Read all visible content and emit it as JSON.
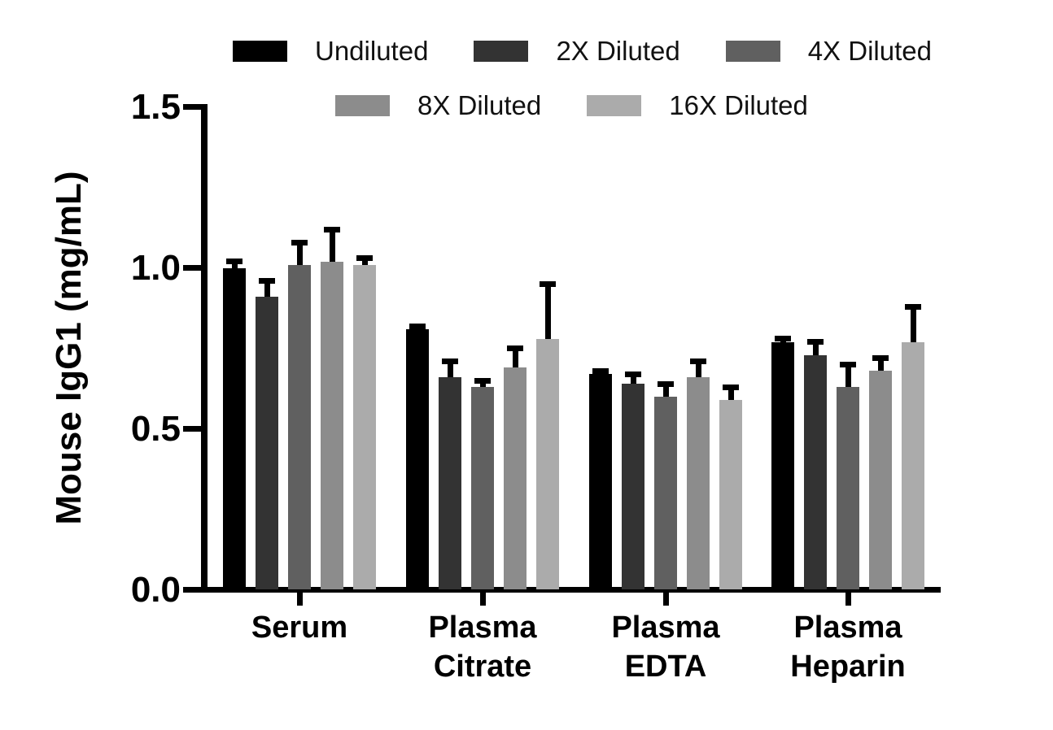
{
  "chart_data": {
    "type": "bar",
    "title": "",
    "xlabel": "",
    "ylabel": "Mouse IgG1 (mg/mL)",
    "ylim": [
      0.0,
      1.5
    ],
    "yticks": [
      0.0,
      0.5,
      1.0,
      1.5
    ],
    "ytick_labels": [
      "0.0",
      "0.5",
      "1.0",
      "1.5"
    ],
    "grid": false,
    "error_bars": "upper SD whisker with cap",
    "legend_position": "top, two rows",
    "categories": [
      {
        "label": "Serum",
        "lines": [
          "Serum"
        ]
      },
      {
        "label": "Plasma Citrate",
        "lines": [
          "Plasma",
          "Citrate"
        ]
      },
      {
        "label": "Plasma EDTA",
        "lines": [
          "Plasma",
          "EDTA"
        ]
      },
      {
        "label": "Plasma Heparin",
        "lines": [
          "Plasma",
          "Heparin"
        ]
      }
    ],
    "series": [
      {
        "name": "Undiluted",
        "color": "#000000",
        "values": [
          1.0,
          0.81,
          0.67,
          0.77
        ],
        "errors": [
          0.02,
          0.01,
          0.01,
          0.01
        ]
      },
      {
        "name": "2X Diluted",
        "color": "#333333",
        "values": [
          0.91,
          0.66,
          0.64,
          0.73
        ],
        "errors": [
          0.05,
          0.05,
          0.03,
          0.04
        ]
      },
      {
        "name": "4X Diluted",
        "color": "#606060",
        "values": [
          1.01,
          0.63,
          0.6,
          0.63
        ],
        "errors": [
          0.07,
          0.02,
          0.04,
          0.07
        ]
      },
      {
        "name": "8X Diluted",
        "color": "#8c8c8c",
        "values": [
          1.02,
          0.69,
          0.66,
          0.68
        ],
        "errors": [
          0.1,
          0.06,
          0.05,
          0.04
        ]
      },
      {
        "name": "16X Diluted",
        "color": "#ababab",
        "values": [
          1.01,
          0.78,
          0.59,
          0.77
        ],
        "errors": [
          0.02,
          0.17,
          0.04,
          0.11
        ]
      }
    ]
  }
}
